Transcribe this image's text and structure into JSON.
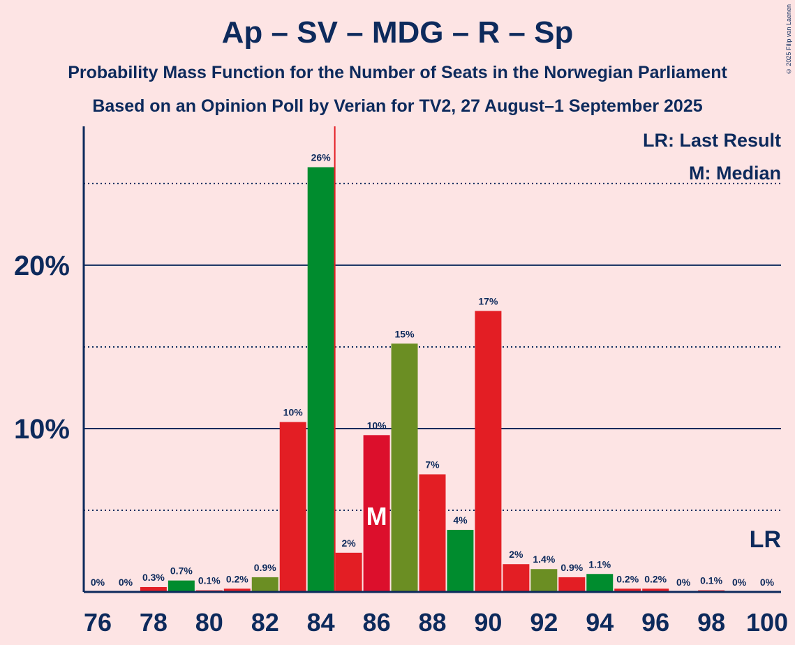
{
  "title": "Ap – SV – MDG – R – Sp",
  "subtitle": "Probability Mass Function for the Number of Seats in the Norwegian Parliament",
  "subtitle2": "Based on an Opinion Poll by Verian for TV2, 27 August–1 September 2025",
  "copyright": "© 2025 Filip van Laenen",
  "chart_data": {
    "type": "bar",
    "x": [
      76,
      77,
      78,
      79,
      80,
      81,
      82,
      83,
      84,
      85,
      86,
      87,
      88,
      89,
      90,
      91,
      92,
      93,
      94,
      95,
      96,
      97,
      98,
      99,
      100
    ],
    "values": [
      0,
      0,
      0.3,
      0.7,
      0.1,
      0.2,
      0.9,
      10.4,
      26.0,
      2.4,
      9.6,
      15.2,
      7.2,
      3.8,
      17.2,
      1.7,
      1.4,
      0.9,
      1.1,
      0.2,
      0.2,
      0,
      0.1,
      0,
      0
    ],
    "labels": [
      "0%",
      "0%",
      "0.3%",
      "0.7%",
      "0.1%",
      "0.2%",
      "0.9%",
      "10%",
      "26%",
      "2%",
      "10%",
      "15%",
      "7%",
      "4%",
      "17%",
      "2%",
      "1.4%",
      "0.9%",
      "1.1%",
      "0.2%",
      "0.2%",
      "0%",
      "0.1%",
      "0%",
      "0%"
    ],
    "colors": [
      "#e31e24",
      "#e31e24",
      "#e31e24",
      "#008c2e",
      "#e31e24",
      "#e31e24",
      "#6b8e23",
      "#e31e24",
      "#008c2e",
      "#e31e24",
      "#dc0f2c",
      "#6b8e23",
      "#e31e24",
      "#008c2e",
      "#e31e24",
      "#e31e24",
      "#6b8e23",
      "#e31e24",
      "#008c2e",
      "#e31e24",
      "#e31e24",
      "#e31e24",
      "#e31e24",
      "#e31e24",
      "#e31e24"
    ],
    "xticks": [
      76,
      78,
      80,
      82,
      84,
      86,
      88,
      90,
      92,
      94,
      96,
      98,
      100
    ],
    "yticks": [
      {
        "v": 10,
        "label": "10%"
      },
      {
        "v": 20,
        "label": "20%"
      }
    ],
    "dotted_gridlines": [
      5,
      15,
      25
    ],
    "ylim": [
      0,
      28.5
    ],
    "xlim": [
      75.5,
      100.5
    ],
    "median": 86,
    "median_label": "M",
    "last_result": 100,
    "last_result_label": "LR",
    "majority_line": 84.5,
    "legend": [
      "LR: Last Result",
      "M: Median"
    ],
    "legend_position": "top-right",
    "axis_color": "#0d2a5c",
    "majority_color": "#e31e24"
  }
}
